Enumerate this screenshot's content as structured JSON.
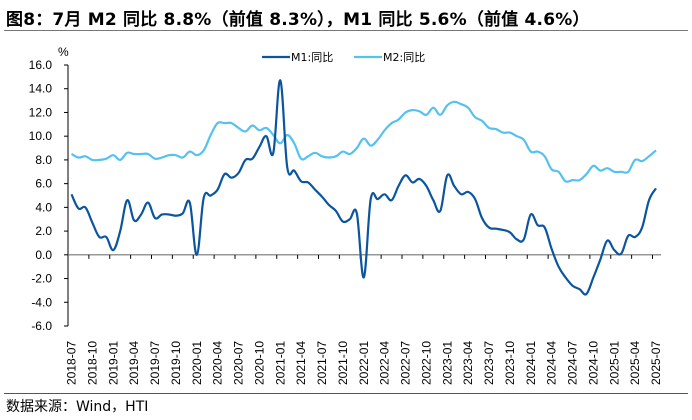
{
  "title": "图8：7月 M2 同比 8.8%（前值 8.3%），M1 同比 5.6%（前值 4.6%）",
  "source": "数据来源：Wind，HTI",
  "chart_data": {
    "type": "line",
    "title": "",
    "xlabel": "",
    "ylabel": "%",
    "ylim": [
      -6,
      16
    ],
    "yticks": [
      "16.0",
      "14.0",
      "12.0",
      "10.0",
      "8.0",
      "6.0",
      "4.0",
      "2.0",
      "0.0",
      "-2.0",
      "-4.0",
      "-6.0"
    ],
    "xtick_labels": [
      "2018-07",
      "2018-10",
      "2019-01",
      "2019-04",
      "2019-07",
      "2019-10",
      "2020-01",
      "2020-04",
      "2020-07",
      "2020-10",
      "2021-01",
      "2021-04",
      "2021-07",
      "2021-10",
      "2022-01",
      "2022-04",
      "2022-07",
      "2022-10",
      "2023-01",
      "2023-04",
      "2023-07",
      "2023-10",
      "2024-01",
      "2024-04",
      "2024-07",
      "2024-10",
      "2025-01",
      "2025-04",
      "2025-07"
    ],
    "x_start": "2018-07",
    "x_end": "2025-07",
    "frequency": "monthly",
    "grid": false,
    "legend_position": "top-center",
    "series": [
      {
        "name": "M1:同比",
        "color": "#0b559f",
        "values": [
          5.1,
          3.9,
          4.0,
          2.7,
          1.5,
          1.5,
          0.4,
          2.0,
          4.6,
          2.9,
          3.4,
          4.4,
          3.1,
          3.4,
          3.4,
          3.3,
          3.5,
          4.4,
          0.0,
          4.8,
          5.0,
          5.5,
          6.8,
          6.5,
          6.9,
          8.0,
          8.1,
          9.1,
          10.0,
          8.6,
          14.7,
          7.4,
          7.1,
          6.2,
          6.1,
          5.5,
          4.9,
          4.2,
          3.7,
          2.8,
          3.0,
          3.5,
          -1.9,
          4.7,
          4.7,
          5.1,
          4.6,
          5.8,
          6.7,
          6.1,
          6.4,
          5.8,
          4.6,
          3.7,
          6.7,
          5.8,
          5.1,
          5.3,
          4.7,
          3.1,
          2.3,
          2.2,
          2.1,
          1.9,
          1.3,
          1.3,
          3.4,
          2.5,
          2.3,
          0.5,
          -1.0,
          -1.9,
          -2.6,
          -2.9,
          -3.3,
          -1.9,
          -0.4,
          1.2,
          0.4,
          0.1,
          1.6,
          1.5,
          2.3,
          4.6,
          5.6
        ]
      },
      {
        "name": "M2:同比",
        "color": "#55c1ef",
        "values": [
          8.5,
          8.2,
          8.3,
          8.0,
          8.0,
          8.1,
          8.4,
          8.0,
          8.6,
          8.5,
          8.5,
          8.5,
          8.1,
          8.2,
          8.4,
          8.4,
          8.2,
          8.7,
          8.4,
          8.8,
          10.1,
          11.1,
          11.1,
          11.1,
          10.7,
          10.4,
          10.9,
          10.5,
          10.7,
          10.1,
          9.4,
          10.1,
          9.4,
          8.1,
          8.3,
          8.6,
          8.3,
          8.2,
          8.3,
          8.7,
          8.5,
          9.0,
          9.8,
          9.2,
          9.7,
          10.5,
          11.1,
          11.4,
          12.0,
          12.2,
          12.1,
          11.8,
          12.4,
          11.8,
          12.6,
          12.9,
          12.7,
          12.4,
          11.6,
          11.3,
          10.7,
          10.6,
          10.3,
          10.3,
          10.0,
          9.7,
          8.7,
          8.7,
          8.3,
          7.2,
          7.0,
          6.2,
          6.3,
          6.3,
          6.8,
          7.5,
          7.1,
          7.3,
          7.0,
          7.0,
          7.0,
          8.0,
          7.9,
          8.3,
          8.8
        ]
      }
    ]
  }
}
